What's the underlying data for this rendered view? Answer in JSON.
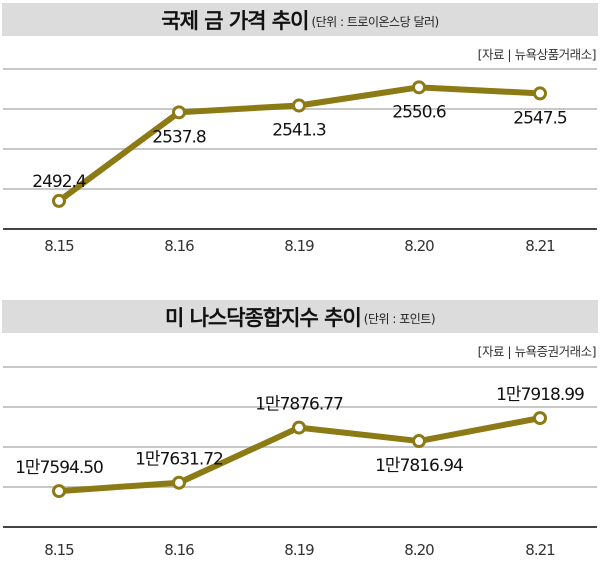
{
  "colors": {
    "line": "#8c7a14",
    "band": "#dcdcdc",
    "grid": "#c8c8c8"
  },
  "chart_data": [
    {
      "type": "line",
      "title": "국제 금 가격 추이",
      "unit": "(단위 : 트로이온스당 달러)",
      "source": "[자료 | 뉴욕상품거래소]",
      "categories": [
        "8.15",
        "8.16",
        "8.19",
        "8.20",
        "8.21"
      ],
      "series": [
        {
          "name": "국제 금 가격",
          "values": [
            2492.4,
            2537.8,
            2541.3,
            2550.6,
            2547.5
          ]
        }
      ],
      "data_labels": [
        "2492.4",
        "2537.8",
        "2541.3",
        "2550.6",
        "2547.5"
      ],
      "ylim": [
        2478,
        2560
      ],
      "grid": true,
      "xlabel": "",
      "ylabel": ""
    },
    {
      "type": "line",
      "title": "미 나스닥종합지수 추이",
      "unit": "(단위 : 포인트)",
      "source": "[자료 | 뉴욕증권거래소]",
      "categories": [
        "8.15",
        "8.16",
        "8.19",
        "8.20",
        "8.21"
      ],
      "series": [
        {
          "name": "나스닥종합지수",
          "values": [
            17594.5,
            17631.72,
            17876.77,
            17816.94,
            17918.99
          ]
        }
      ],
      "data_labels": [
        "1만7594.50",
        "1만7631.72",
        "1만7876.77",
        "1만7816.94",
        "1만7918.99"
      ],
      "ylim": [
        17435,
        18146
      ],
      "grid": true,
      "xlabel": "",
      "ylabel": ""
    }
  ]
}
